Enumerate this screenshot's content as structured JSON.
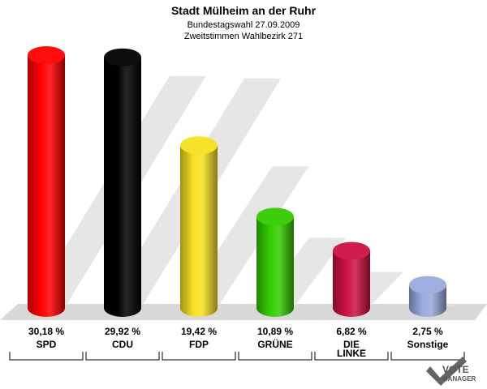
{
  "chart_data": {
    "type": "bar",
    "title": "Stadt Mülheim an der Ruhr",
    "subtitle_lines": [
      "Bundestagswahl 27.09.2009",
      "Zweitstimmen Wahlbezirk 271"
    ],
    "categories": [
      "SPD",
      "CDU",
      "FDP",
      "GRÜNE",
      "DIE LINKE",
      "Sonstige"
    ],
    "category_lines": [
      [
        "SPD"
      ],
      [
        "CDU"
      ],
      [
        "FDP"
      ],
      [
        "GRÜNE"
      ],
      [
        "DIE",
        "LINKE"
      ],
      [
        "Sonstige"
      ]
    ],
    "values": [
      30.18,
      29.92,
      19.42,
      10.89,
      6.82,
      2.75
    ],
    "value_labels": [
      "30,18 %",
      "29,92 %",
      "19,42 %",
      "10,89 %",
      "6,82 %",
      "2,75 %"
    ],
    "colors": [
      "#ff0000",
      "#000000",
      "#f5e020",
      "#33cc00",
      "#cc1144",
      "#99aadd"
    ],
    "ylim": [
      0,
      31
    ],
    "grid": false,
    "legend": "none"
  },
  "logo": {
    "line1": "VOTE",
    "line2": "MANAGER"
  }
}
